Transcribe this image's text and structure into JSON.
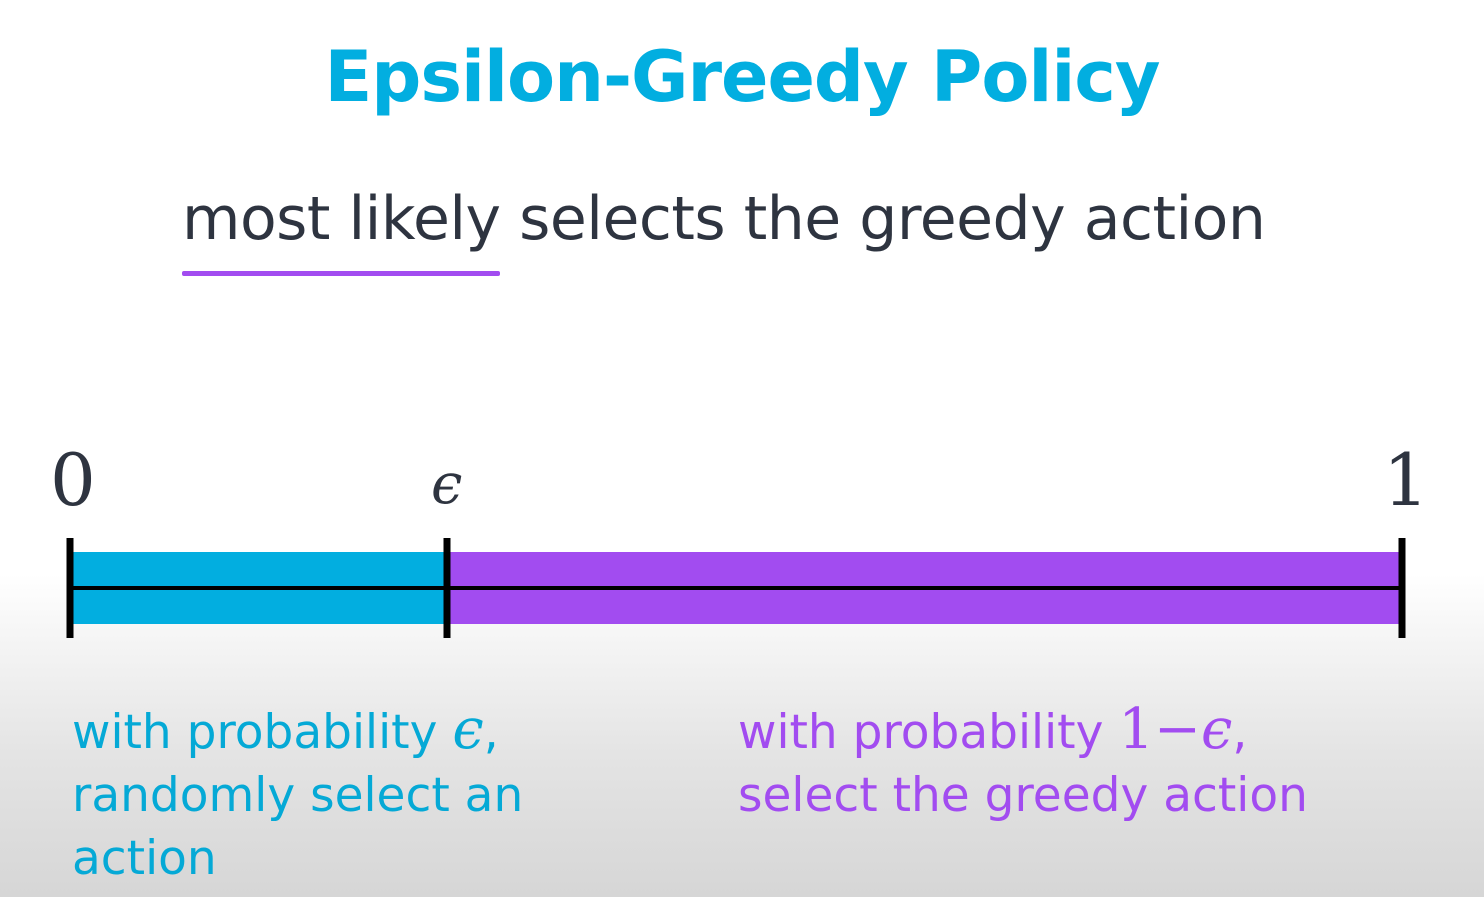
{
  "title": "Epsilon-Greedy Policy",
  "subtitle": "most likely selects the greedy action",
  "axis": {
    "start_label": "0",
    "epsilon_label": "ϵ",
    "end_label": "1"
  },
  "regions": [
    {
      "color": "#02aee0",
      "caption_line1_prefix": "with probability ",
      "caption_line1_math": "ϵ",
      "caption_line1_suffix": ",",
      "caption_line2": "randomly select an",
      "caption_line3": "action"
    },
    {
      "color": "#a24cf0",
      "caption_line1_prefix": "with probability ",
      "caption_line1_math_one": "1",
      "caption_line1_math_minus": "−",
      "caption_line1_math_eps": "ϵ",
      "caption_line1_suffix": ",",
      "caption_line2": "select the greedy action"
    }
  ],
  "colors": {
    "title": "#02aee0",
    "explore": "#02aee0",
    "exploit": "#a24cf0",
    "underline": "#a24cf0",
    "text": "#2e3440"
  }
}
